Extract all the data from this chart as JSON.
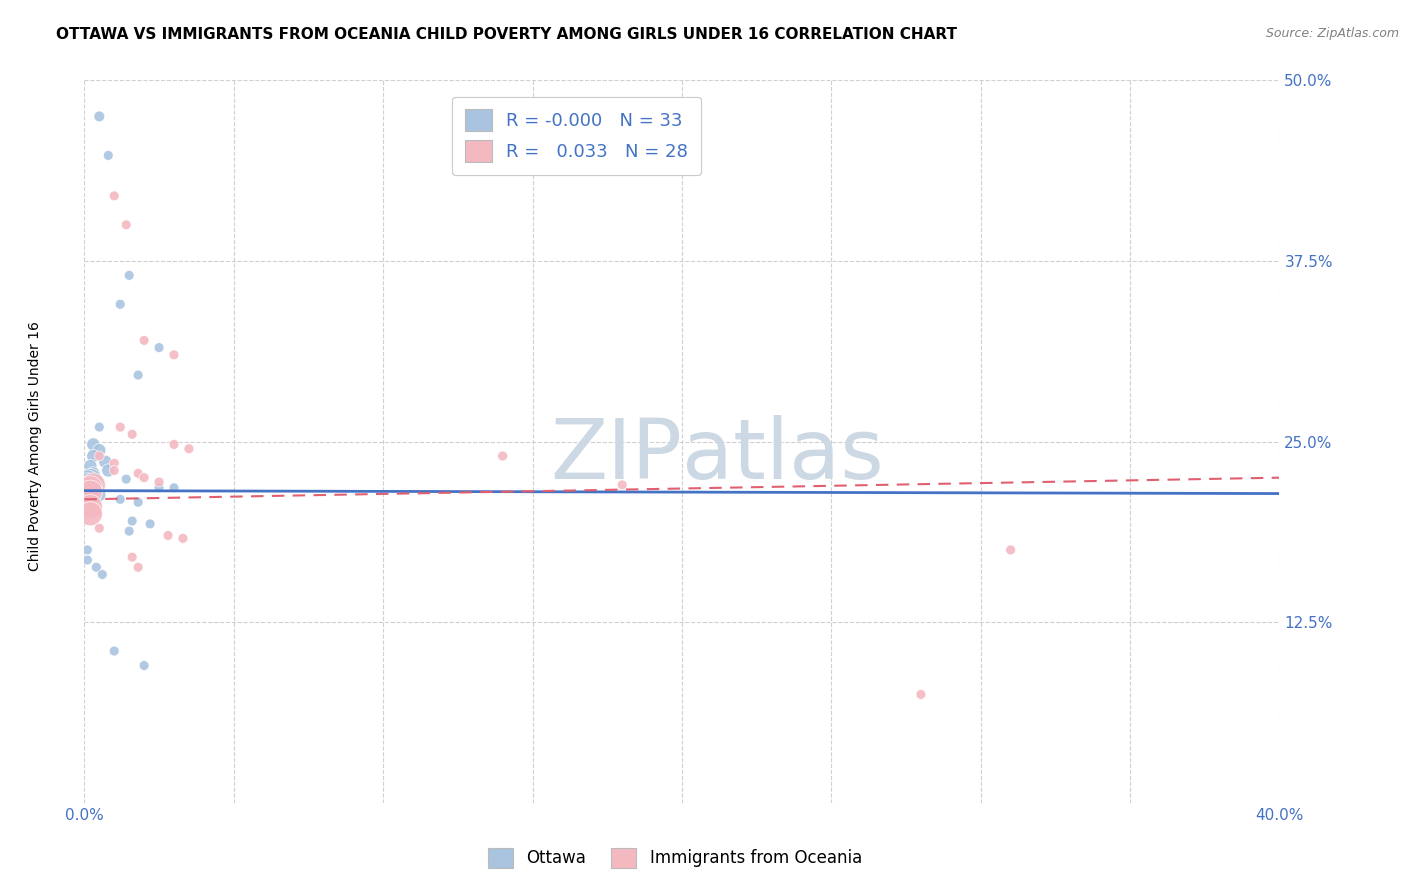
{
  "title": "OTTAWA VS IMMIGRANTS FROM OCEANIA CHILD POVERTY AMONG GIRLS UNDER 16 CORRELATION CHART",
  "source": "Source: ZipAtlas.com",
  "ylabel": "Child Poverty Among Girls Under 16",
  "xlim": [
    0.0,
    0.4
  ],
  "ylim": [
    0.0,
    0.5
  ],
  "xticks": [
    0.0,
    0.05,
    0.1,
    0.15,
    0.2,
    0.25,
    0.3,
    0.35,
    0.4
  ],
  "xticklabels": [
    "0.0%",
    "",
    "",
    "",
    "",
    "",
    "",
    "",
    "40.0%"
  ],
  "yticks": [
    0.0,
    0.125,
    0.25,
    0.375,
    0.5
  ],
  "yticklabels": [
    "",
    "12.5%",
    "25.0%",
    "37.5%",
    "50.0%"
  ],
  "ottawa_color": "#aac4e0",
  "oceania_color": "#f4b8c1",
  "ottawa_line_color": "#4472c4",
  "oceania_line_color": "#e06070",
  "legend_r_ottawa": "-0.000",
  "legend_n_ottawa": "33",
  "legend_r_oceania": "0.033",
  "legend_n_oceania": "28",
  "ottawa_trend": [
    0.0,
    0.4,
    0.215,
    0.213
  ],
  "oceania_trend": [
    0.0,
    0.4,
    0.21,
    0.225
  ],
  "ottawa_points": [
    [
      0.005,
      0.475
    ],
    [
      0.008,
      0.448
    ],
    [
      0.015,
      0.365
    ],
    [
      0.012,
      0.345
    ],
    [
      0.025,
      0.315
    ],
    [
      0.018,
      0.296
    ],
    [
      0.005,
      0.26
    ],
    [
      0.003,
      0.248
    ],
    [
      0.005,
      0.244
    ],
    [
      0.003,
      0.24
    ],
    [
      0.007,
      0.236
    ],
    [
      0.002,
      0.233
    ],
    [
      0.008,
      0.23
    ],
    [
      0.003,
      0.228
    ],
    [
      0.014,
      0.224
    ],
    [
      0.002,
      0.223
    ],
    [
      0.001,
      0.222
    ],
    [
      0.001,
      0.22
    ],
    [
      0.025,
      0.218
    ],
    [
      0.03,
      0.218
    ],
    [
      0.001,
      0.215
    ],
    [
      0.005,
      0.213
    ],
    [
      0.012,
      0.21
    ],
    [
      0.018,
      0.208
    ],
    [
      0.016,
      0.195
    ],
    [
      0.022,
      0.193
    ],
    [
      0.015,
      0.188
    ],
    [
      0.001,
      0.175
    ],
    [
      0.001,
      0.168
    ],
    [
      0.004,
      0.163
    ],
    [
      0.006,
      0.158
    ],
    [
      0.01,
      0.105
    ],
    [
      0.02,
      0.095
    ]
  ],
  "ottawa_sizes": [
    60,
    50,
    50,
    50,
    50,
    50,
    50,
    90,
    90,
    90,
    90,
    90,
    90,
    90,
    50,
    300,
    300,
    300,
    50,
    50,
    300,
    90,
    50,
    50,
    50,
    50,
    50,
    50,
    50,
    50,
    50,
    50,
    50
  ],
  "oceania_points": [
    [
      0.01,
      0.42
    ],
    [
      0.014,
      0.4
    ],
    [
      0.02,
      0.32
    ],
    [
      0.03,
      0.31
    ],
    [
      0.012,
      0.26
    ],
    [
      0.016,
      0.255
    ],
    [
      0.03,
      0.248
    ],
    [
      0.035,
      0.245
    ],
    [
      0.005,
      0.24
    ],
    [
      0.01,
      0.235
    ],
    [
      0.01,
      0.23
    ],
    [
      0.018,
      0.228
    ],
    [
      0.02,
      0.225
    ],
    [
      0.025,
      0.222
    ],
    [
      0.003,
      0.22
    ],
    [
      0.002,
      0.218
    ],
    [
      0.002,
      0.215
    ],
    [
      0.002,
      0.205
    ],
    [
      0.002,
      0.2
    ],
    [
      0.005,
      0.19
    ],
    [
      0.028,
      0.185
    ],
    [
      0.033,
      0.183
    ],
    [
      0.016,
      0.17
    ],
    [
      0.018,
      0.163
    ],
    [
      0.14,
      0.24
    ],
    [
      0.18,
      0.22
    ],
    [
      0.31,
      0.175
    ],
    [
      0.28,
      0.075
    ]
  ],
  "oceania_sizes": [
    50,
    50,
    50,
    50,
    50,
    50,
    50,
    50,
    50,
    50,
    50,
    50,
    50,
    50,
    300,
    300,
    300,
    300,
    300,
    50,
    50,
    50,
    50,
    50,
    50,
    50,
    50,
    50
  ],
  "background_color": "#ffffff",
  "grid_color": "#d0d0d0",
  "title_fontsize": 11,
  "axis_label_fontsize": 10,
  "tick_fontsize": 11,
  "watermark_color": "#cdd8e5",
  "watermark_fontsize": 60
}
